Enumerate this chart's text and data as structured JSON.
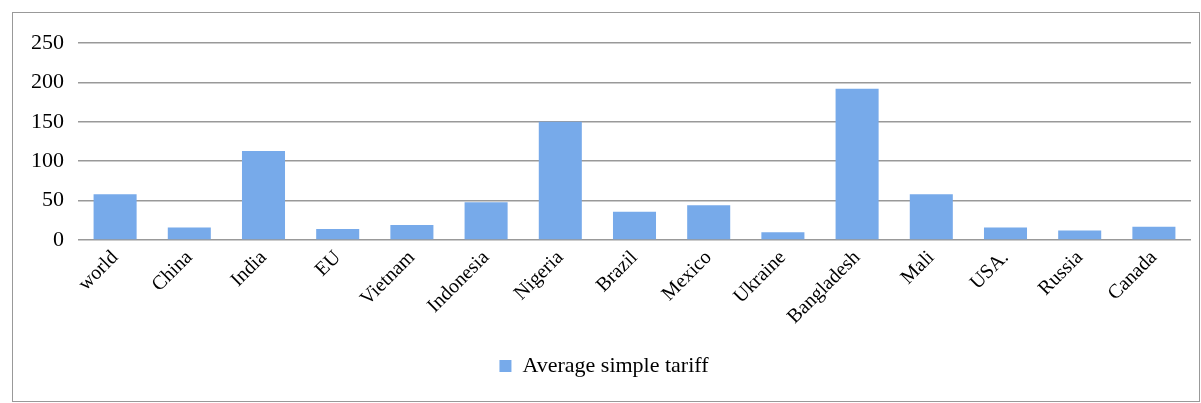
{
  "chart_data": {
    "type": "bar",
    "categories": [
      "world",
      "China",
      "India",
      "EU",
      "Vietnam",
      "Indonesia",
      "Nigeria",
      "Brazil",
      "Mexico",
      "Ukraine",
      "Bangladesh",
      "Mali",
      "USA.",
      "Russia",
      "Canada"
    ],
    "series": [
      {
        "name": "Average simple tariff",
        "color": "#77aaea",
        "values": [
          58,
          16,
          113,
          14,
          19,
          48,
          150,
          36,
          44,
          10,
          192,
          58,
          16,
          12,
          17
        ]
      }
    ],
    "ylim": [
      0,
      250
    ],
    "yticks": [
      0,
      50,
      100,
      150,
      200,
      250
    ],
    "grid": "y",
    "legend": "bottom"
  }
}
